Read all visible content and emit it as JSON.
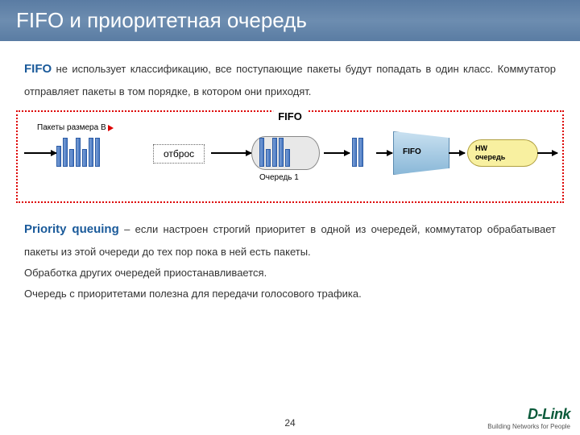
{
  "header": {
    "title": "FIFO и приоритетная очередь"
  },
  "fifo_para": {
    "lead": "FIFO",
    "text": " не использует классификацию, все поступающие пакеты будут попадать в один класс. Коммутатор отправляет пакеты в том порядке, в котором они приходят."
  },
  "diagram": {
    "title": "FIFO",
    "packets_label": "Пакеты размера B",
    "drop_label": "отброс",
    "queue1_label": "Очередь 1",
    "fifo_label": "FIFO",
    "hw_label_1": "HW",
    "hw_label_2": "очередь",
    "colors": {
      "border": "#d00",
      "packet_fill": "#4a7ac4",
      "queue_bg": "#e8e8e8",
      "trapezoid_bg": "#8ab8d8",
      "hw_bg": "#f8f0a0"
    },
    "packet_clusters": [
      {
        "heights": [
          26,
          36,
          22,
          36,
          22,
          36,
          36
        ]
      },
      {
        "heights": [
          36,
          22,
          36,
          36,
          22
        ]
      },
      {
        "heights": [
          36,
          36
        ]
      }
    ]
  },
  "priority_para": {
    "lead": "Priority queuing",
    "text": " – если настроен строгий приоритет в одной из очередей, коммутатор обрабатывает пакеты из этой очереди до тех пор пока в ней есть пакеты."
  },
  "extra_lines": {
    "l1": "Обработка других очередей приостанавливается.",
    "l2": "Очередь с приоритетами  полезна для передачи голосового трафика."
  },
  "page_number": "24",
  "logo": {
    "brand": "D-Link",
    "tagline": "Building Networks for People"
  }
}
